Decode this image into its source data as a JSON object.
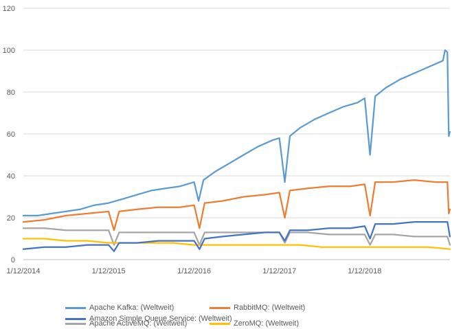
{
  "chart_data": {
    "type": "line",
    "title": "",
    "xlabel": "",
    "ylabel": "",
    "ylim": [
      0,
      120
    ],
    "yticks": [
      0,
      20,
      40,
      60,
      80,
      100,
      120
    ],
    "x_tick_labels": [
      "1/12/2014",
      "1/12/2015",
      "1/12/2016",
      "1/12/2017",
      "1/12/2018"
    ],
    "x_ticks": [
      "2014-12-01",
      "2015-12-01",
      "2016-12-01",
      "2017-12-01",
      "2018-12-01"
    ],
    "x_range": [
      "2014-12-01",
      "2019-12-01"
    ],
    "grid": "horizontal",
    "legend_placement": "bottom",
    "series": [
      {
        "name": "Apache Kafka: (Weltweit)",
        "color": "#5B9BD5",
        "points": [
          [
            "2014-12-01",
            21
          ],
          [
            "2015-02-01",
            21
          ],
          [
            "2015-04-01",
            22
          ],
          [
            "2015-06-01",
            23
          ],
          [
            "2015-08-01",
            24
          ],
          [
            "2015-10-01",
            26
          ],
          [
            "2015-12-01",
            27
          ],
          [
            "2016-02-01",
            29
          ],
          [
            "2016-04-01",
            31
          ],
          [
            "2016-06-01",
            33
          ],
          [
            "2016-08-01",
            34
          ],
          [
            "2016-10-01",
            35
          ],
          [
            "2016-12-01",
            37
          ],
          [
            "2016-12-20",
            28
          ],
          [
            "2017-01-10",
            38
          ],
          [
            "2017-03-01",
            42
          ],
          [
            "2017-05-01",
            46
          ],
          [
            "2017-07-01",
            50
          ],
          [
            "2017-09-01",
            54
          ],
          [
            "2017-11-01",
            57
          ],
          [
            "2017-12-01",
            58
          ],
          [
            "2017-12-24",
            37
          ],
          [
            "2018-01-15",
            59
          ],
          [
            "2018-03-01",
            63
          ],
          [
            "2018-05-01",
            67
          ],
          [
            "2018-07-01",
            70
          ],
          [
            "2018-09-01",
            73
          ],
          [
            "2018-11-01",
            75
          ],
          [
            "2018-12-01",
            77
          ],
          [
            "2018-12-24",
            50
          ],
          [
            "2019-01-15",
            78
          ],
          [
            "2019-03-01",
            82
          ],
          [
            "2019-05-01",
            86
          ],
          [
            "2019-07-01",
            89
          ],
          [
            "2019-09-01",
            92
          ],
          [
            "2019-11-01",
            95
          ],
          [
            "2019-11-10",
            100
          ],
          [
            "2019-11-20",
            99
          ],
          [
            "2019-11-26",
            59
          ],
          [
            "2019-12-01",
            61
          ]
        ]
      },
      {
        "name": "RabbitMQ: (Weltweit)",
        "color": "#ED7D31",
        "points": [
          [
            "2014-12-01",
            18
          ],
          [
            "2015-03-01",
            19
          ],
          [
            "2015-06-01",
            21
          ],
          [
            "2015-09-01",
            22
          ],
          [
            "2015-12-01",
            23
          ],
          [
            "2015-12-24",
            14
          ],
          [
            "2016-01-15",
            23
          ],
          [
            "2016-04-01",
            24
          ],
          [
            "2016-07-01",
            25
          ],
          [
            "2016-10-01",
            25
          ],
          [
            "2016-12-01",
            26
          ],
          [
            "2016-12-24",
            15
          ],
          [
            "2017-01-15",
            27
          ],
          [
            "2017-04-01",
            28
          ],
          [
            "2017-07-01",
            30
          ],
          [
            "2017-10-01",
            31
          ],
          [
            "2017-12-01",
            32
          ],
          [
            "2017-12-24",
            20
          ],
          [
            "2018-01-15",
            33
          ],
          [
            "2018-04-01",
            34
          ],
          [
            "2018-07-01",
            35
          ],
          [
            "2018-10-01",
            35
          ],
          [
            "2018-12-01",
            36
          ],
          [
            "2018-12-24",
            21
          ],
          [
            "2019-01-15",
            37
          ],
          [
            "2019-04-01",
            37
          ],
          [
            "2019-07-01",
            38
          ],
          [
            "2019-10-01",
            37
          ],
          [
            "2019-11-20",
            37
          ],
          [
            "2019-11-26",
            22
          ],
          [
            "2019-12-01",
            24
          ]
        ]
      },
      {
        "name": "Apache ActiveMQ: (Weltweit)",
        "color": "#A5A5A5",
        "points": [
          [
            "2014-12-01",
            15
          ],
          [
            "2015-03-01",
            15
          ],
          [
            "2015-06-01",
            14
          ],
          [
            "2015-09-01",
            14
          ],
          [
            "2015-12-01",
            14
          ],
          [
            "2015-12-24",
            7
          ],
          [
            "2016-01-15",
            13
          ],
          [
            "2016-04-01",
            13
          ],
          [
            "2016-07-01",
            13
          ],
          [
            "2016-10-01",
            13
          ],
          [
            "2016-12-01",
            13
          ],
          [
            "2016-12-24",
            7
          ],
          [
            "2017-01-15",
            13
          ],
          [
            "2017-04-01",
            13
          ],
          [
            "2017-07-01",
            13
          ],
          [
            "2017-10-01",
            13
          ],
          [
            "2017-12-01",
            13
          ],
          [
            "2017-12-24",
            8
          ],
          [
            "2018-01-15",
            13
          ],
          [
            "2018-04-01",
            13
          ],
          [
            "2018-07-01",
            12
          ],
          [
            "2018-10-01",
            12
          ],
          [
            "2018-12-01",
            12
          ],
          [
            "2018-12-24",
            7
          ],
          [
            "2019-01-15",
            12
          ],
          [
            "2019-04-01",
            12
          ],
          [
            "2019-07-01",
            11
          ],
          [
            "2019-10-01",
            11
          ],
          [
            "2019-11-20",
            11
          ],
          [
            "2019-12-01",
            7
          ]
        ]
      },
      {
        "name": "ZeroMQ: (Weltweit)",
        "color": "#FFC000",
        "points": [
          [
            "2014-12-01",
            10
          ],
          [
            "2015-03-01",
            10
          ],
          [
            "2015-06-01",
            9
          ],
          [
            "2015-09-01",
            9
          ],
          [
            "2015-12-01",
            8
          ],
          [
            "2016-03-01",
            8
          ],
          [
            "2016-06-01",
            8
          ],
          [
            "2016-09-01",
            8
          ],
          [
            "2016-12-01",
            7
          ],
          [
            "2017-03-01",
            7
          ],
          [
            "2017-06-01",
            7
          ],
          [
            "2017-09-01",
            7
          ],
          [
            "2017-12-01",
            7
          ],
          [
            "2018-03-01",
            7
          ],
          [
            "2018-06-01",
            6
          ],
          [
            "2018-09-01",
            6
          ],
          [
            "2018-12-01",
            6
          ],
          [
            "2019-03-01",
            6
          ],
          [
            "2019-06-01",
            6
          ],
          [
            "2019-09-01",
            6
          ],
          [
            "2019-12-01",
            5
          ]
        ]
      },
      {
        "name": "Amazon Simple Queue Service: (Weltweit)",
        "color": "#4472C4",
        "points": [
          [
            "2014-12-01",
            5
          ],
          [
            "2015-03-01",
            6
          ],
          [
            "2015-06-01",
            6
          ],
          [
            "2015-09-01",
            7
          ],
          [
            "2015-12-01",
            7
          ],
          [
            "2015-12-24",
            4
          ],
          [
            "2016-01-15",
            8
          ],
          [
            "2016-04-01",
            8
          ],
          [
            "2016-07-01",
            9
          ],
          [
            "2016-10-01",
            9
          ],
          [
            "2016-12-01",
            9
          ],
          [
            "2016-12-24",
            5
          ],
          [
            "2017-01-15",
            10
          ],
          [
            "2017-04-01",
            11
          ],
          [
            "2017-07-01",
            12
          ],
          [
            "2017-10-01",
            13
          ],
          [
            "2017-12-01",
            13
          ],
          [
            "2017-12-24",
            9
          ],
          [
            "2018-01-15",
            14
          ],
          [
            "2018-04-01",
            14
          ],
          [
            "2018-07-01",
            15
          ],
          [
            "2018-10-01",
            15
          ],
          [
            "2018-12-01",
            16
          ],
          [
            "2018-12-24",
            10
          ],
          [
            "2019-01-15",
            17
          ],
          [
            "2019-04-01",
            17
          ],
          [
            "2019-07-01",
            18
          ],
          [
            "2019-10-01",
            18
          ],
          [
            "2019-11-20",
            18
          ],
          [
            "2019-12-01",
            11
          ]
        ]
      }
    ]
  }
}
